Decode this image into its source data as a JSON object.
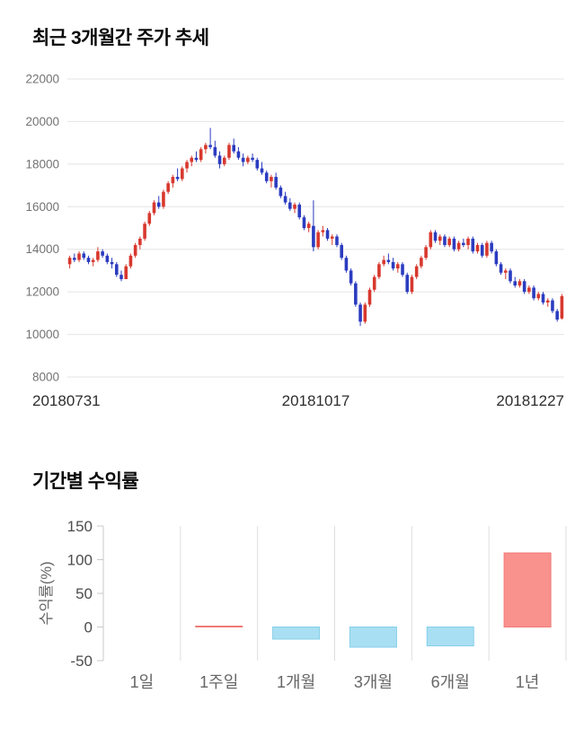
{
  "titles": {
    "price_trend": "최근 3개월간 주가 추세",
    "period_returns": "기간별 수익률"
  },
  "chart_data": [
    {
      "type": "candlestick",
      "title": "최근 3개월간 주가 추세",
      "ylim": [
        8000,
        22000
      ],
      "y_ticks": [
        8000,
        10000,
        12000,
        14000,
        16000,
        18000,
        20000,
        22000
      ],
      "x_tick_labels": [
        "20180731",
        "20181017",
        "20181227"
      ],
      "up_color": "#d8382e",
      "down_color": "#2b3cc0",
      "grid": "horizontal",
      "candles": [
        [
          13300,
          13700,
          13100,
          13600
        ],
        [
          13600,
          13800,
          13400,
          13500
        ],
        [
          13500,
          13900,
          13400,
          13800
        ],
        [
          13800,
          13900,
          13500,
          13600
        ],
        [
          13600,
          13700,
          13300,
          13400
        ],
        [
          13400,
          13600,
          13200,
          13500
        ],
        [
          13500,
          14100,
          13400,
          13900
        ],
        [
          13900,
          14000,
          13600,
          13700
        ],
        [
          13700,
          13800,
          13300,
          13400
        ],
        [
          13400,
          13600,
          13100,
          13300
        ],
        [
          13300,
          13400,
          12700,
          12800
        ],
        [
          12800,
          13000,
          12500,
          12600
        ],
        [
          12600,
          13300,
          12600,
          13200
        ],
        [
          13200,
          13800,
          13100,
          13700
        ],
        [
          13700,
          14300,
          13600,
          14200
        ],
        [
          14200,
          14600,
          14000,
          14500
        ],
        [
          14500,
          15300,
          14400,
          15200
        ],
        [
          15200,
          15800,
          15100,
          15700
        ],
        [
          15700,
          16300,
          15600,
          16200
        ],
        [
          16200,
          16500,
          15900,
          16000
        ],
        [
          16000,
          16800,
          15900,
          16700
        ],
        [
          16700,
          17200,
          16600,
          17100
        ],
        [
          17100,
          17500,
          16900,
          17400
        ],
        [
          17400,
          17800,
          17200,
          17300
        ],
        [
          17300,
          17900,
          17200,
          17800
        ],
        [
          17800,
          18200,
          17600,
          18100
        ],
        [
          18100,
          18400,
          17900,
          18300
        ],
        [
          18300,
          18600,
          18100,
          18200
        ],
        [
          18200,
          18800,
          18100,
          18700
        ],
        [
          18700,
          19000,
          18500,
          18900
        ],
        [
          18900,
          19700,
          18700,
          18800
        ],
        [
          18800,
          19100,
          18300,
          18400
        ],
        [
          18400,
          18600,
          17800,
          18000
        ],
        [
          18000,
          18400,
          17900,
          18300
        ],
        [
          18300,
          19000,
          18200,
          18900
        ],
        [
          18900,
          19200,
          18500,
          18600
        ],
        [
          18600,
          18800,
          18200,
          18300
        ],
        [
          18300,
          18500,
          17900,
          18100
        ],
        [
          18100,
          18400,
          18000,
          18300
        ],
        [
          18300,
          18500,
          18100,
          18200
        ],
        [
          18200,
          18300,
          17700,
          17800
        ],
        [
          17800,
          18100,
          17500,
          17600
        ],
        [
          17600,
          17700,
          17100,
          17200
        ],
        [
          17200,
          17500,
          16900,
          17400
        ],
        [
          17400,
          17600,
          16800,
          16900
        ],
        [
          16900,
          17000,
          16400,
          16500
        ],
        [
          16500,
          16700,
          16100,
          16200
        ],
        [
          16200,
          16400,
          15800,
          15900
        ],
        [
          15900,
          16200,
          15700,
          16100
        ],
        [
          16100,
          16200,
          15400,
          15500
        ],
        [
          15500,
          15600,
          14900,
          15000
        ],
        [
          15000,
          15300,
          14800,
          15200
        ],
        [
          15100,
          16300,
          13900,
          14100
        ],
        [
          14100,
          14900,
          14000,
          14800
        ],
        [
          14800,
          15100,
          14600,
          14900
        ],
        [
          14900,
          15000,
          14400,
          14500
        ],
        [
          14500,
          14700,
          14200,
          14600
        ],
        [
          14600,
          14700,
          14100,
          14200
        ],
        [
          14200,
          14300,
          13500,
          13600
        ],
        [
          13600,
          13700,
          12900,
          13000
        ],
        [
          13000,
          13100,
          12300,
          12400
        ],
        [
          12400,
          12500,
          11300,
          11400
        ],
        [
          11400,
          11500,
          10400,
          10600
        ],
        [
          10600,
          11500,
          10500,
          11400
        ],
        [
          11400,
          12200,
          11300,
          12100
        ],
        [
          12100,
          12800,
          12000,
          12700
        ],
        [
          12700,
          13400,
          12600,
          13300
        ],
        [
          13300,
          13700,
          13200,
          13500
        ],
        [
          13500,
          13800,
          13300,
          13400
        ],
        [
          13400,
          13600,
          13000,
          13100
        ],
        [
          13100,
          13400,
          12900,
          13300
        ],
        [
          13300,
          13400,
          12700,
          12800
        ],
        [
          12800,
          12900,
          11900,
          12000
        ],
        [
          12000,
          12800,
          11900,
          12700
        ],
        [
          12700,
          13300,
          12600,
          13200
        ],
        [
          13200,
          13700,
          13100,
          13600
        ],
        [
          13600,
          14200,
          13500,
          14100
        ],
        [
          14100,
          14900,
          14000,
          14800
        ],
        [
          14800,
          14900,
          14300,
          14400
        ],
        [
          14400,
          14700,
          14200,
          14600
        ],
        [
          14600,
          14700,
          14100,
          14200
        ],
        [
          14200,
          14600,
          14100,
          14500
        ],
        [
          14500,
          14600,
          13900,
          14000
        ],
        [
          14000,
          14400,
          13900,
          14300
        ],
        [
          14300,
          14500,
          14100,
          14200
        ],
        [
          14200,
          14600,
          14000,
          14500
        ],
        [
          14500,
          14600,
          13800,
          13900
        ],
        [
          13900,
          14300,
          13800,
          14200
        ],
        [
          14200,
          14300,
          13600,
          13700
        ],
        [
          13700,
          14400,
          13600,
          14300
        ],
        [
          14300,
          14400,
          13800,
          13900
        ],
        [
          13900,
          14000,
          13200,
          13300
        ],
        [
          13300,
          13400,
          12800,
          12900
        ],
        [
          12900,
          13100,
          12600,
          13000
        ],
        [
          13000,
          13100,
          12400,
          12500
        ],
        [
          12500,
          12700,
          12200,
          12300
        ],
        [
          12300,
          12600,
          12200,
          12500
        ],
        [
          12500,
          12600,
          11900,
          12000
        ],
        [
          12000,
          12300,
          11900,
          12200
        ],
        [
          12200,
          12300,
          11600,
          11700
        ],
        [
          11700,
          12000,
          11600,
          11900
        ],
        [
          11900,
          12000,
          11400,
          11500
        ],
        [
          11500,
          11700,
          11300,
          11600
        ],
        [
          11600,
          11700,
          11000,
          11100
        ],
        [
          11100,
          11200,
          10600,
          10700
        ],
        [
          10750,
          11900,
          10700,
          11800
        ]
      ]
    },
    {
      "type": "bar",
      "title": "기간별 수익률",
      "ylabel": "수익률(%)",
      "categories": [
        "1일",
        "1주일",
        "1개월",
        "3개월",
        "6개월",
        "1년"
      ],
      "values": [
        0,
        1,
        -18,
        -30,
        -28,
        110
      ],
      "ylim": [
        -50,
        150
      ],
      "y_ticks": [
        150,
        100,
        50,
        0,
        -50
      ],
      "positive_color": "#f9918d",
      "negative_color": "#a9dff2",
      "positive_border": "#ef7b77",
      "negative_border": "#86cfe9",
      "grid": "vertical",
      "legend": false
    }
  ]
}
